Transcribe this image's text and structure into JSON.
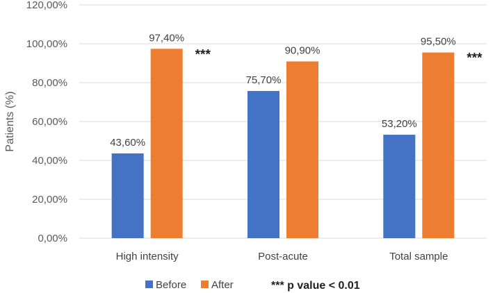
{
  "chart_data": {
    "type": "bar",
    "title": "",
    "xlabel": "",
    "ylabel": "Patients (%)",
    "ylim": [
      0,
      120
    ],
    "grid": true,
    "legend_position": "bottom",
    "y_ticks": [
      "0,00%",
      "20,00%",
      "40,00%",
      "60,00%",
      "80,00%",
      "100,00%",
      "120,00%"
    ],
    "categories": [
      "High intensity",
      "Post-acute",
      "Total sample"
    ],
    "series": [
      {
        "name": "Before",
        "color": "#4472C4",
        "values": [
          43.6,
          75.7,
          53.2
        ],
        "labels": [
          "43,60%",
          "75,70%",
          "53,20%"
        ]
      },
      {
        "name": "After",
        "color": "#ED7D31",
        "values": [
          97.4,
          90.9,
          95.5
        ],
        "labels": [
          "97,40%",
          "90,90%",
          "95,50%"
        ]
      }
    ],
    "significance_markers": [
      "***",
      "",
      "***"
    ],
    "note": "*** p value < 0.01"
  }
}
